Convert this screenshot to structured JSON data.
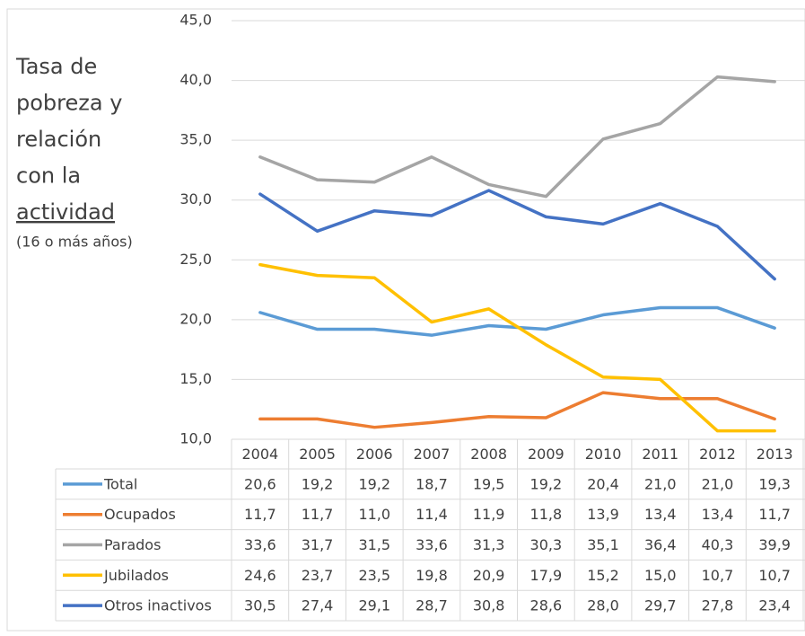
{
  "chart_data": {
    "type": "line",
    "title": [
      "Tasa de",
      "pobreza y",
      "relación",
      "con la",
      "actividad"
    ],
    "subtitle": "(16 o más años)",
    "categories": [
      "2004",
      "2005",
      "2006",
      "2007",
      "2008",
      "2009",
      "2010",
      "2011",
      "2012",
      "2013"
    ],
    "series": [
      {
        "name": "Total",
        "color": "#5b9bd5",
        "values": [
          20.6,
          19.2,
          19.2,
          18.7,
          19.5,
          19.2,
          20.4,
          21.0,
          21.0,
          19.3
        ],
        "value_labels": [
          "20,6",
          "19,2",
          "19,2",
          "18,7",
          "19,5",
          "19,2",
          "20,4",
          "21,0",
          "21,0",
          "19,3"
        ]
      },
      {
        "name": "Ocupados",
        "color": "#ed7d31",
        "values": [
          11.7,
          11.7,
          11.0,
          11.4,
          11.9,
          11.8,
          13.9,
          13.4,
          13.4,
          11.7
        ],
        "value_labels": [
          "11,7",
          "11,7",
          "11,0",
          "11,4",
          "11,9",
          "11,8",
          "13,9",
          "13,4",
          "13,4",
          "11,7"
        ]
      },
      {
        "name": "Parados",
        "color": "#a5a5a5",
        "values": [
          33.6,
          31.7,
          31.5,
          33.6,
          31.3,
          30.3,
          35.1,
          36.4,
          40.3,
          39.9
        ],
        "value_labels": [
          "33,6",
          "31,7",
          "31,5",
          "33,6",
          "31,3",
          "30,3",
          "35,1",
          "36,4",
          "40,3",
          "39,9"
        ]
      },
      {
        "name": "Jubilados",
        "color": "#ffc000",
        "values": [
          24.6,
          23.7,
          23.5,
          19.8,
          20.9,
          17.9,
          15.2,
          15.0,
          10.7,
          10.7
        ],
        "value_labels": [
          "24,6",
          "23,7",
          "23,5",
          "19,8",
          "20,9",
          "17,9",
          "15,2",
          "15,0",
          "10,7",
          "10,7"
        ]
      },
      {
        "name": "Otros inactivos",
        "color": "#4472c4",
        "values": [
          30.5,
          27.4,
          29.1,
          28.7,
          30.8,
          28.6,
          28.0,
          29.7,
          27.8,
          23.4
        ],
        "value_labels": [
          "30,5",
          "27,4",
          "29,1",
          "28,7",
          "30,8",
          "28,6",
          "28,0",
          "29,7",
          "27,8",
          "23,4"
        ]
      }
    ],
    "ylim": [
      10,
      45
    ],
    "yticks": [
      {
        "value": 10,
        "label": "10,0"
      },
      {
        "value": 15,
        "label": "15,0"
      },
      {
        "value": 20,
        "label": "20,0"
      },
      {
        "value": 25,
        "label": "25,0"
      },
      {
        "value": 30,
        "label": "30,0"
      },
      {
        "value": 35,
        "label": "35,0"
      },
      {
        "value": 40,
        "label": "40,0"
      },
      {
        "value": 45,
        "label": "45,0"
      }
    ],
    "grid": true
  }
}
